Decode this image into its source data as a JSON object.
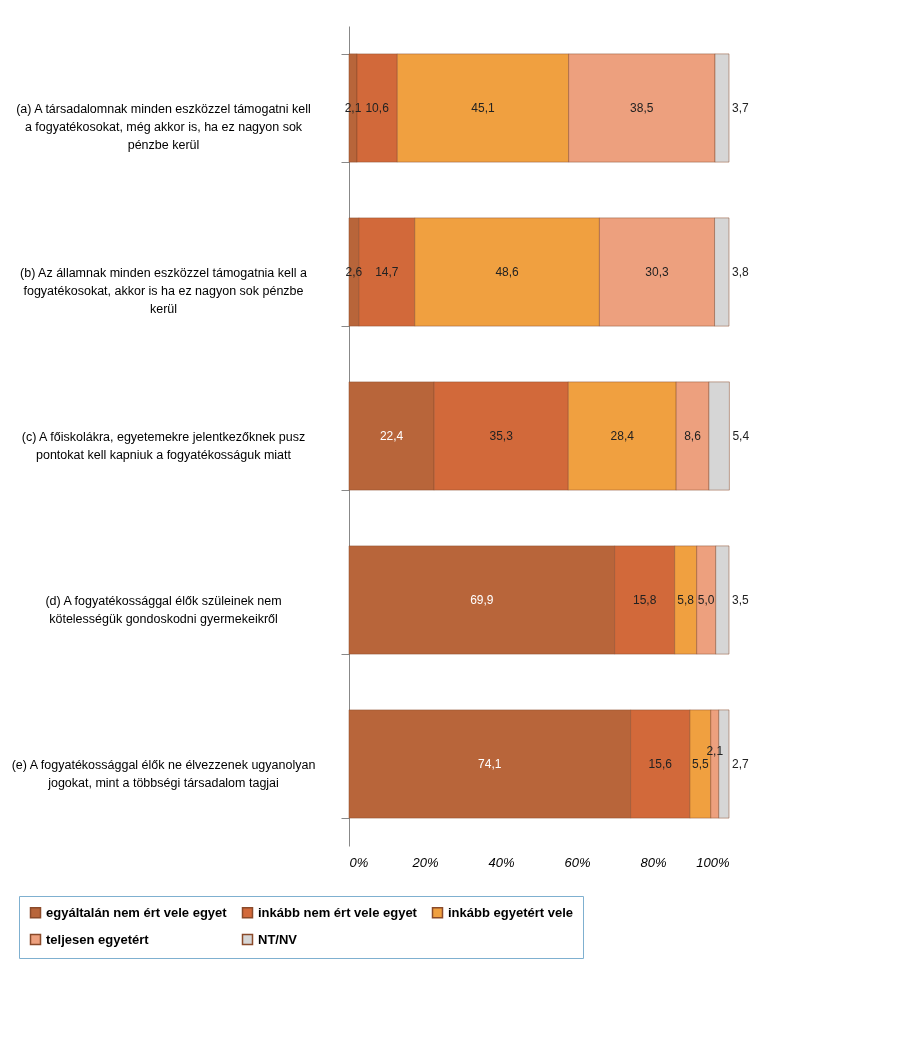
{
  "chart_data": {
    "type": "bar",
    "orientation": "horizontal",
    "stacked": true,
    "grid": false,
    "legend": "bottom",
    "categories": [
      "(a) A társadalomnak minden eszközzel támogatni kell a fogyatékosokat, még akkor is, ha ez nagyon sok pénzbe kerül",
      "(b) Az államnak minden eszközzel támogatnia kell a fogyatékosokat, akkor is ha ez nagyon sok pénzbe kerül",
      "(c) A főiskolákra, egyetemekre jelentkezőknek pusz pontokat kell kapniuk a fogyatékosságuk miatt",
      "(d) A fogyatékossággal élők szüleinek nem kötelességük gondoskodni gyermekeikről",
      "(e) A fogyatékossággal élők ne élvezzenek ugyanolyan jogokat, mint a többségi társadalom tagjai"
    ],
    "series": [
      {
        "name": "egyáltalán nem ért vele egyet",
        "color": "#b8653a",
        "values": [
          2.1,
          2.6,
          22.4,
          69.9,
          74.1
        ],
        "value_labels": [
          "2,1",
          "2,6",
          "22,4",
          "69,9",
          "74,1"
        ]
      },
      {
        "name": "inkább nem ért vele egyet",
        "color": "#d2693a",
        "values": [
          10.6,
          14.7,
          35.3,
          15.8,
          15.6
        ],
        "value_labels": [
          "10,6",
          "14,7",
          "35,3",
          "15,8",
          "15,6"
        ]
      },
      {
        "name": "inkább egyetért vele",
        "color": "#f0a040",
        "values": [
          45.1,
          48.6,
          28.4,
          5.8,
          5.5
        ],
        "value_labels": [
          "45,1",
          "48,6",
          "28,4",
          "5,8",
          "5,5"
        ]
      },
      {
        "name": "teljesen egyetért",
        "color": "#eda07e",
        "values": [
          38.5,
          30.3,
          8.6,
          5.0,
          2.1
        ],
        "value_labels": [
          "38,5",
          "30,3",
          "8,6",
          "5,0",
          "2,1"
        ]
      },
      {
        "name": "NT/NV",
        "color": "#d6d6d6",
        "values": [
          3.7,
          3.8,
          5.4,
          3.5,
          2.7
        ],
        "value_labels": [
          "3,7",
          "3,8",
          "5,4",
          "3,5",
          "2,7"
        ]
      }
    ],
    "xlim": [
      0,
      100
    ],
    "xticks": [
      {
        "value": 0,
        "label": "0%"
      },
      {
        "value": 20,
        "label": "20%"
      },
      {
        "value": 40,
        "label": "40%"
      },
      {
        "value": 60,
        "label": "60%"
      },
      {
        "value": 80,
        "label": "80%"
      },
      {
        "value": 100,
        "label": "100%"
      }
    ]
  }
}
